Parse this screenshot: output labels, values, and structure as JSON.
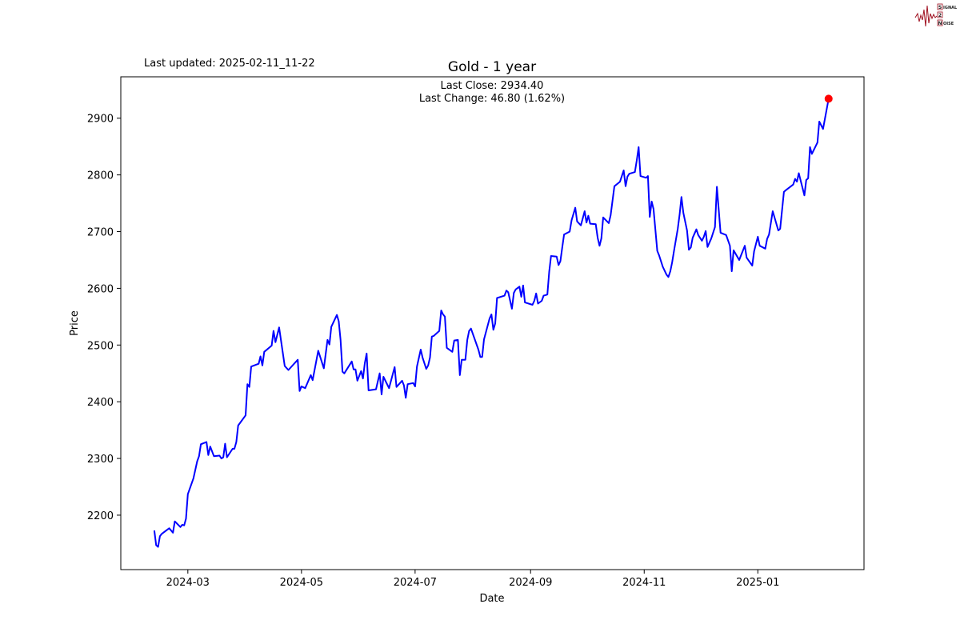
{
  "header": {
    "last_updated": "Last updated: 2025-02-11_11-22"
  },
  "logo": {
    "text": "SIGNAL 2 NOISE",
    "lines": [
      "IGNAL",
      "",
      "OISE"
    ],
    "initials": [
      "S",
      "2",
      "N"
    ],
    "color": "#a01020"
  },
  "chart_data": {
    "type": "line",
    "title": "Gold - 1 year",
    "annotation": {
      "last_close": "Last Close: 2934.40",
      "last_change": "Last Change: 46.80 (1.62%)"
    },
    "xlabel": "Date",
    "ylabel": "Price",
    "xlim": [
      "2024-01-25",
      "2025-02-27"
    ],
    "ylim": [
      2104,
      2973
    ],
    "x_ticks": [
      "2024-03",
      "2024-05",
      "2024-07",
      "2024-09",
      "2024-11",
      "2025-01"
    ],
    "y_ticks": [
      2200,
      2300,
      2400,
      2500,
      2600,
      2700,
      2800,
      2900
    ],
    "grid": false,
    "line_color": "#0000ff",
    "last_point_color": "#ff0000",
    "last_point": [
      "2025-02-08",
      2934.4
    ],
    "series": [
      {
        "points": [
          [
            "2024-02-12",
            2173
          ],
          [
            "2024-02-13",
            2147
          ],
          [
            "2024-02-14",
            2144
          ],
          [
            "2024-02-15",
            2163
          ],
          [
            "2024-02-16",
            2167
          ],
          [
            "2024-02-20",
            2177
          ],
          [
            "2024-02-22",
            2169
          ],
          [
            "2024-02-23",
            2189
          ],
          [
            "2024-02-26",
            2179
          ],
          [
            "2024-02-27",
            2183
          ],
          [
            "2024-02-28",
            2182
          ],
          [
            "2024-02-29",
            2194
          ],
          [
            "2024-03-01",
            2237
          ],
          [
            "2024-03-04",
            2265
          ],
          [
            "2024-03-06",
            2295
          ],
          [
            "2024-03-07",
            2304
          ],
          [
            "2024-03-08",
            2325
          ],
          [
            "2024-03-11",
            2329
          ],
          [
            "2024-03-12",
            2306
          ],
          [
            "2024-03-13",
            2321
          ],
          [
            "2024-03-15",
            2304
          ],
          [
            "2024-03-18",
            2305
          ],
          [
            "2024-03-19",
            2300
          ],
          [
            "2024-03-20",
            2302
          ],
          [
            "2024-03-21",
            2326
          ],
          [
            "2024-03-22",
            2302
          ],
          [
            "2024-03-25",
            2317
          ],
          [
            "2024-03-26",
            2317
          ],
          [
            "2024-03-27",
            2329
          ],
          [
            "2024-03-28",
            2358
          ],
          [
            "2024-04-01",
            2376
          ],
          [
            "2024-04-02",
            2431
          ],
          [
            "2024-04-03",
            2426
          ],
          [
            "2024-04-04",
            2462
          ],
          [
            "2024-04-08",
            2467
          ],
          [
            "2024-04-09",
            2480
          ],
          [
            "2024-04-10",
            2464
          ],
          [
            "2024-04-11",
            2488
          ],
          [
            "2024-04-15",
            2499
          ],
          [
            "2024-04-16",
            2525
          ],
          [
            "2024-04-17",
            2505
          ],
          [
            "2024-04-19",
            2531
          ],
          [
            "2024-04-22",
            2463
          ],
          [
            "2024-04-24",
            2456
          ],
          [
            "2024-04-29",
            2474
          ],
          [
            "2024-04-30",
            2419
          ],
          [
            "2024-05-01",
            2427
          ],
          [
            "2024-05-03",
            2424
          ],
          [
            "2024-05-06",
            2447
          ],
          [
            "2024-05-07",
            2438
          ],
          [
            "2024-05-10",
            2490
          ],
          [
            "2024-05-13",
            2459
          ],
          [
            "2024-05-15",
            2509
          ],
          [
            "2024-05-16",
            2501
          ],
          [
            "2024-05-17",
            2532
          ],
          [
            "2024-05-20",
            2553
          ],
          [
            "2024-05-21",
            2542
          ],
          [
            "2024-05-22",
            2509
          ],
          [
            "2024-05-23",
            2453
          ],
          [
            "2024-05-24",
            2450
          ],
          [
            "2024-05-28",
            2471
          ],
          [
            "2024-05-29",
            2457
          ],
          [
            "2024-05-30",
            2457
          ],
          [
            "2024-05-31",
            2437
          ],
          [
            "2024-06-02",
            2454
          ],
          [
            "2024-06-03",
            2441
          ],
          [
            "2024-06-04",
            2468
          ],
          [
            "2024-06-05",
            2485
          ],
          [
            "2024-06-06",
            2420
          ],
          [
            "2024-06-10",
            2422
          ],
          [
            "2024-06-12",
            2450
          ],
          [
            "2024-06-13",
            2413
          ],
          [
            "2024-06-14",
            2444
          ],
          [
            "2024-06-17",
            2424
          ],
          [
            "2024-06-20",
            2461
          ],
          [
            "2024-06-21",
            2426
          ],
          [
            "2024-06-24",
            2437
          ],
          [
            "2024-06-25",
            2429
          ],
          [
            "2024-06-26",
            2407
          ],
          [
            "2024-06-27",
            2431
          ],
          [
            "2024-06-30",
            2433
          ],
          [
            "2024-07-01",
            2427
          ],
          [
            "2024-07-02",
            2462
          ],
          [
            "2024-07-04",
            2492
          ],
          [
            "2024-07-05",
            2478
          ],
          [
            "2024-07-07",
            2458
          ],
          [
            "2024-07-08",
            2464
          ],
          [
            "2024-07-09",
            2478
          ],
          [
            "2024-07-10",
            2515
          ],
          [
            "2024-07-11",
            2516
          ],
          [
            "2024-07-14",
            2525
          ],
          [
            "2024-07-15",
            2561
          ],
          [
            "2024-07-16",
            2554
          ],
          [
            "2024-07-17",
            2550
          ],
          [
            "2024-07-18",
            2495
          ],
          [
            "2024-07-21",
            2488
          ],
          [
            "2024-07-22",
            2508
          ],
          [
            "2024-07-24",
            2509
          ],
          [
            "2024-07-25",
            2447
          ],
          [
            "2024-07-26",
            2474
          ],
          [
            "2024-07-28",
            2474
          ],
          [
            "2024-07-29",
            2509
          ],
          [
            "2024-07-30",
            2525
          ],
          [
            "2024-07-31",
            2529
          ],
          [
            "2024-08-04",
            2492
          ],
          [
            "2024-08-05",
            2479
          ],
          [
            "2024-08-06",
            2479
          ],
          [
            "2024-08-07",
            2510
          ],
          [
            "2024-08-10",
            2547
          ],
          [
            "2024-08-11",
            2554
          ],
          [
            "2024-08-12",
            2527
          ],
          [
            "2024-08-13",
            2538
          ],
          [
            "2024-08-14",
            2583
          ],
          [
            "2024-08-18",
            2587
          ],
          [
            "2024-08-19",
            2596
          ],
          [
            "2024-08-20",
            2593
          ],
          [
            "2024-08-22",
            2564
          ],
          [
            "2024-08-23",
            2592
          ],
          [
            "2024-08-24",
            2598
          ],
          [
            "2024-08-26",
            2603
          ],
          [
            "2024-08-27",
            2585
          ],
          [
            "2024-08-28",
            2605
          ],
          [
            "2024-08-29",
            2575
          ],
          [
            "2024-09-02",
            2571
          ],
          [
            "2024-09-03",
            2578
          ],
          [
            "2024-09-04",
            2591
          ],
          [
            "2024-09-05",
            2573
          ],
          [
            "2024-09-07",
            2578
          ],
          [
            "2024-09-08",
            2587
          ],
          [
            "2024-09-09",
            2588
          ],
          [
            "2024-09-10",
            2589
          ],
          [
            "2024-09-11",
            2629
          ],
          [
            "2024-09-12",
            2657
          ],
          [
            "2024-09-15",
            2656
          ],
          [
            "2024-09-16",
            2641
          ],
          [
            "2024-09-17",
            2648
          ],
          [
            "2024-09-18",
            2672
          ],
          [
            "2024-09-19",
            2695
          ],
          [
            "2024-09-22",
            2700
          ],
          [
            "2024-09-23",
            2720
          ],
          [
            "2024-09-25",
            2742
          ],
          [
            "2024-09-26",
            2718
          ],
          [
            "2024-09-28",
            2711
          ],
          [
            "2024-09-30",
            2736
          ],
          [
            "2024-10-01",
            2716
          ],
          [
            "2024-10-02",
            2728
          ],
          [
            "2024-10-03",
            2714
          ],
          [
            "2024-10-06",
            2713
          ],
          [
            "2024-10-07",
            2689
          ],
          [
            "2024-10-08",
            2675
          ],
          [
            "2024-10-09",
            2688
          ],
          [
            "2024-10-10",
            2725
          ],
          [
            "2024-10-13",
            2715
          ],
          [
            "2024-10-14",
            2729
          ],
          [
            "2024-10-16",
            2780
          ],
          [
            "2024-10-19",
            2788
          ],
          [
            "2024-10-21",
            2808
          ],
          [
            "2024-10-22",
            2780
          ],
          [
            "2024-10-23",
            2797
          ],
          [
            "2024-10-24",
            2802
          ],
          [
            "2024-10-27",
            2805
          ],
          [
            "2024-10-28",
            2825
          ],
          [
            "2024-10-29",
            2849
          ],
          [
            "2024-10-30",
            2798
          ],
          [
            "2024-11-02",
            2795
          ],
          [
            "2024-11-03",
            2798
          ],
          [
            "2024-11-04",
            2726
          ],
          [
            "2024-11-05",
            2753
          ],
          [
            "2024-11-06",
            2740
          ],
          [
            "2024-11-08",
            2666
          ],
          [
            "2024-11-09",
            2658
          ],
          [
            "2024-11-11",
            2638
          ],
          [
            "2024-11-13",
            2624
          ],
          [
            "2024-11-14",
            2620
          ],
          [
            "2024-11-15",
            2630
          ],
          [
            "2024-11-16",
            2646
          ],
          [
            "2024-11-17",
            2666
          ],
          [
            "2024-11-19",
            2705
          ],
          [
            "2024-11-20",
            2730
          ],
          [
            "2024-11-21",
            2761
          ],
          [
            "2024-11-22",
            2733
          ],
          [
            "2024-11-24",
            2702
          ],
          [
            "2024-11-25",
            2668
          ],
          [
            "2024-11-26",
            2672
          ],
          [
            "2024-11-27",
            2689
          ],
          [
            "2024-11-29",
            2704
          ],
          [
            "2024-11-30",
            2694
          ],
          [
            "2024-12-02",
            2684
          ],
          [
            "2024-12-03",
            2691
          ],
          [
            "2024-12-04",
            2701
          ],
          [
            "2024-12-05",
            2673
          ],
          [
            "2024-12-07",
            2688
          ],
          [
            "2024-12-09",
            2708
          ],
          [
            "2024-12-10",
            2779
          ],
          [
            "2024-12-11",
            2739
          ],
          [
            "2024-12-12",
            2698
          ],
          [
            "2024-12-15",
            2694
          ],
          [
            "2024-12-17",
            2675
          ],
          [
            "2024-12-18",
            2630
          ],
          [
            "2024-12-19",
            2667
          ],
          [
            "2024-12-22",
            2650
          ],
          [
            "2024-12-25",
            2675
          ],
          [
            "2024-12-26",
            2654
          ],
          [
            "2024-12-29",
            2640
          ],
          [
            "2024-12-30",
            2665
          ],
          [
            "2025-01-01",
            2691
          ],
          [
            "2025-01-02",
            2675
          ],
          [
            "2025-01-05",
            2670
          ],
          [
            "2025-01-06",
            2687
          ],
          [
            "2025-01-07",
            2695
          ],
          [
            "2025-01-09",
            2736
          ],
          [
            "2025-01-12",
            2702
          ],
          [
            "2025-01-13",
            2705
          ],
          [
            "2025-01-15",
            2770
          ],
          [
            "2025-01-16",
            2773
          ],
          [
            "2025-01-20",
            2783
          ],
          [
            "2025-01-21",
            2793
          ],
          [
            "2025-01-22",
            2788
          ],
          [
            "2025-01-23",
            2803
          ],
          [
            "2025-01-26",
            2764
          ],
          [
            "2025-01-27",
            2791
          ],
          [
            "2025-01-28",
            2794
          ],
          [
            "2025-01-29",
            2849
          ],
          [
            "2025-01-30",
            2837
          ],
          [
            "2025-02-02",
            2857
          ],
          [
            "2025-02-03",
            2894
          ],
          [
            "2025-02-05",
            2881
          ],
          [
            "2025-02-08",
            2934.4
          ]
        ]
      }
    ]
  }
}
